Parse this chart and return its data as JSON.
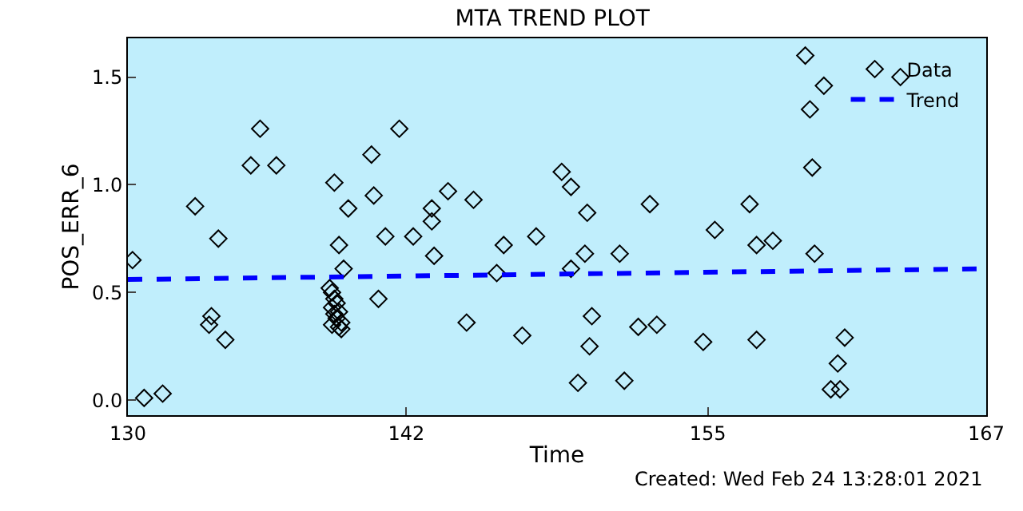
{
  "chart_data": {
    "type": "scatter",
    "title": "MTA TREND PLOT",
    "xlabel": "Time",
    "ylabel": "POS_ERR_6",
    "xlim": [
      130,
      167
    ],
    "xticks": [
      130,
      142,
      155,
      167
    ],
    "ylim": [
      -0.07,
      1.68
    ],
    "yticks": [
      {
        "value": 0,
        "label": "0.0"
      },
      {
        "value": 0.5,
        "label": "0.5"
      },
      {
        "value": 1,
        "label": "1.0"
      },
      {
        "value": 1.5,
        "label": "1.5"
      }
    ],
    "grid": false,
    "legend": "top right",
    "series": [
      {
        "name": "Data",
        "marker": "diamond",
        "color": "#000000",
        "x": [
          130.2,
          130.7,
          131.5,
          132.9,
          133.9,
          133.6,
          133.5,
          134.2,
          135.3,
          135.7,
          136.4,
          138.9,
          139.1,
          139.3,
          139.5,
          140.5,
          140.6,
          140.8,
          141.1,
          141.7,
          142.3,
          138.7,
          138.8,
          138.9,
          139.0,
          138.8,
          139.1,
          138.9,
          139.0,
          139.2,
          138.8,
          139.1,
          139.2,
          143.8,
          143.1,
          143.1,
          144.9,
          143.2,
          144.6,
          145.9,
          146.2,
          147.0,
          147.6,
          148.7,
          149.1,
          149.1,
          149.4,
          149.7,
          149.8,
          150.0,
          149.9,
          151.2,
          151.4,
          152.0,
          152.5,
          152.8,
          154.8,
          155.3,
          156.8,
          157.1,
          157.1,
          157.8,
          159.2,
          160.0,
          159.4,
          159.5,
          159.6,
          160.9,
          160.6,
          160.3,
          160.7,
          163.3
        ],
        "values": [
          0.65,
          0.01,
          0.03,
          0.9,
          0.75,
          0.39,
          0.35,
          0.28,
          1.09,
          1.26,
          1.09,
          1.01,
          0.72,
          0.61,
          0.89,
          1.14,
          0.95,
          0.47,
          0.76,
          1.26,
          0.76,
          0.52,
          0.5,
          0.47,
          0.45,
          0.43,
          0.41,
          0.4,
          0.38,
          0.36,
          0.35,
          0.34,
          0.33,
          0.97,
          0.89,
          0.83,
          0.93,
          0.67,
          0.36,
          0.59,
          0.72,
          0.3,
          0.76,
          1.06,
          0.99,
          0.61,
          0.08,
          0.68,
          0.87,
          0.39,
          0.25,
          0.68,
          0.09,
          0.34,
          0.91,
          0.35,
          0.27,
          0.79,
          0.91,
          0.28,
          0.72,
          0.74,
          1.6,
          1.46,
          1.35,
          1.08,
          0.68,
          0.29,
          0.17,
          0.05,
          0.05,
          1.5
        ]
      },
      {
        "name": "Trend",
        "type": "line",
        "marker": "none",
        "line_style": "dashed",
        "color": "#0000ff",
        "x": [
          130,
          167
        ],
        "values": [
          0.56,
          0.61
        ]
      }
    ],
    "annotations": [
      "Created: Wed Feb 24 13:28:01 2021"
    ]
  }
}
